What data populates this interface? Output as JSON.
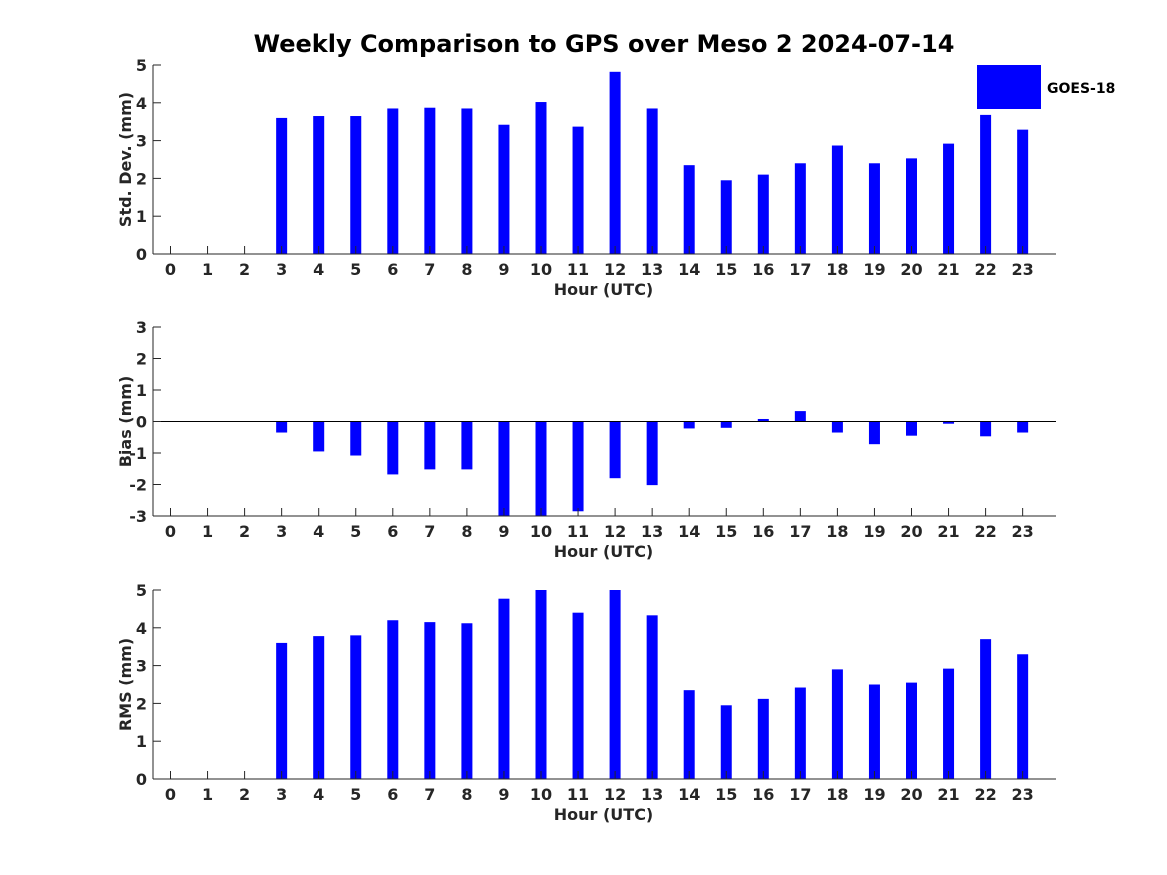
{
  "chart_data": {
    "type": "bar",
    "title": "Weekly Comparison to GPS over Meso 2 2024-07-14",
    "legend": {
      "entries": [
        "GOES-18"
      ],
      "placement": "top-right",
      "color": "#0000ff"
    },
    "bar_color": "#0000ff",
    "panels": [
      {
        "name": "std-dev",
        "xlabel": "Hour (UTC)",
        "ylabel": "Std. Dev. (mm)",
        "ylim": [
          0,
          5
        ],
        "yticks": [
          "0",
          "1",
          "2",
          "3",
          "4",
          "5"
        ],
        "categories": [
          "0",
          "1",
          "2",
          "3",
          "4",
          "5",
          "6",
          "7",
          "8",
          "9",
          "10",
          "11",
          "12",
          "13",
          "14",
          "15",
          "16",
          "17",
          "18",
          "19",
          "20",
          "21",
          "22",
          "23"
        ],
        "values": [
          null,
          null,
          null,
          3.6,
          3.65,
          3.65,
          3.85,
          3.87,
          3.85,
          3.42,
          4.02,
          3.37,
          4.82,
          3.85,
          2.35,
          1.95,
          2.1,
          2.4,
          2.87,
          2.4,
          2.53,
          2.92,
          3.68,
          3.29
        ]
      },
      {
        "name": "bias",
        "xlabel": "Hour (UTC)",
        "ylabel": "Bias (mm)",
        "ylim": [
          -3,
          3
        ],
        "yticks": [
          "-3",
          "-2",
          "-1",
          "0",
          "1",
          "2",
          "3"
        ],
        "categories": [
          "0",
          "1",
          "2",
          "3",
          "4",
          "5",
          "6",
          "7",
          "8",
          "9",
          "10",
          "11",
          "12",
          "13",
          "14",
          "15",
          "16",
          "17",
          "18",
          "19",
          "20",
          "21",
          "22",
          "23"
        ],
        "values": [
          null,
          null,
          null,
          -0.35,
          -0.95,
          -1.08,
          -1.68,
          -1.52,
          -1.52,
          -3.0,
          -3.0,
          -2.85,
          -1.8,
          -2.02,
          -0.22,
          -0.2,
          0.08,
          0.33,
          -0.35,
          -0.72,
          -0.45,
          -0.07,
          -0.47,
          -0.35
        ]
      },
      {
        "name": "rms",
        "xlabel": "Hour (UTC)",
        "ylabel": "RMS (mm)",
        "ylim": [
          0,
          5
        ],
        "yticks": [
          "0",
          "1",
          "2",
          "3",
          "4",
          "5"
        ],
        "categories": [
          "0",
          "1",
          "2",
          "3",
          "4",
          "5",
          "6",
          "7",
          "8",
          "9",
          "10",
          "11",
          "12",
          "13",
          "14",
          "15",
          "16",
          "17",
          "18",
          "19",
          "20",
          "21",
          "22",
          "23"
        ],
        "values": [
          null,
          null,
          null,
          3.6,
          3.78,
          3.8,
          4.2,
          4.15,
          4.12,
          4.77,
          5.0,
          4.4,
          5.0,
          4.33,
          2.35,
          1.95,
          2.12,
          2.42,
          2.9,
          2.5,
          2.55,
          2.92,
          3.7,
          3.3
        ]
      }
    ]
  }
}
